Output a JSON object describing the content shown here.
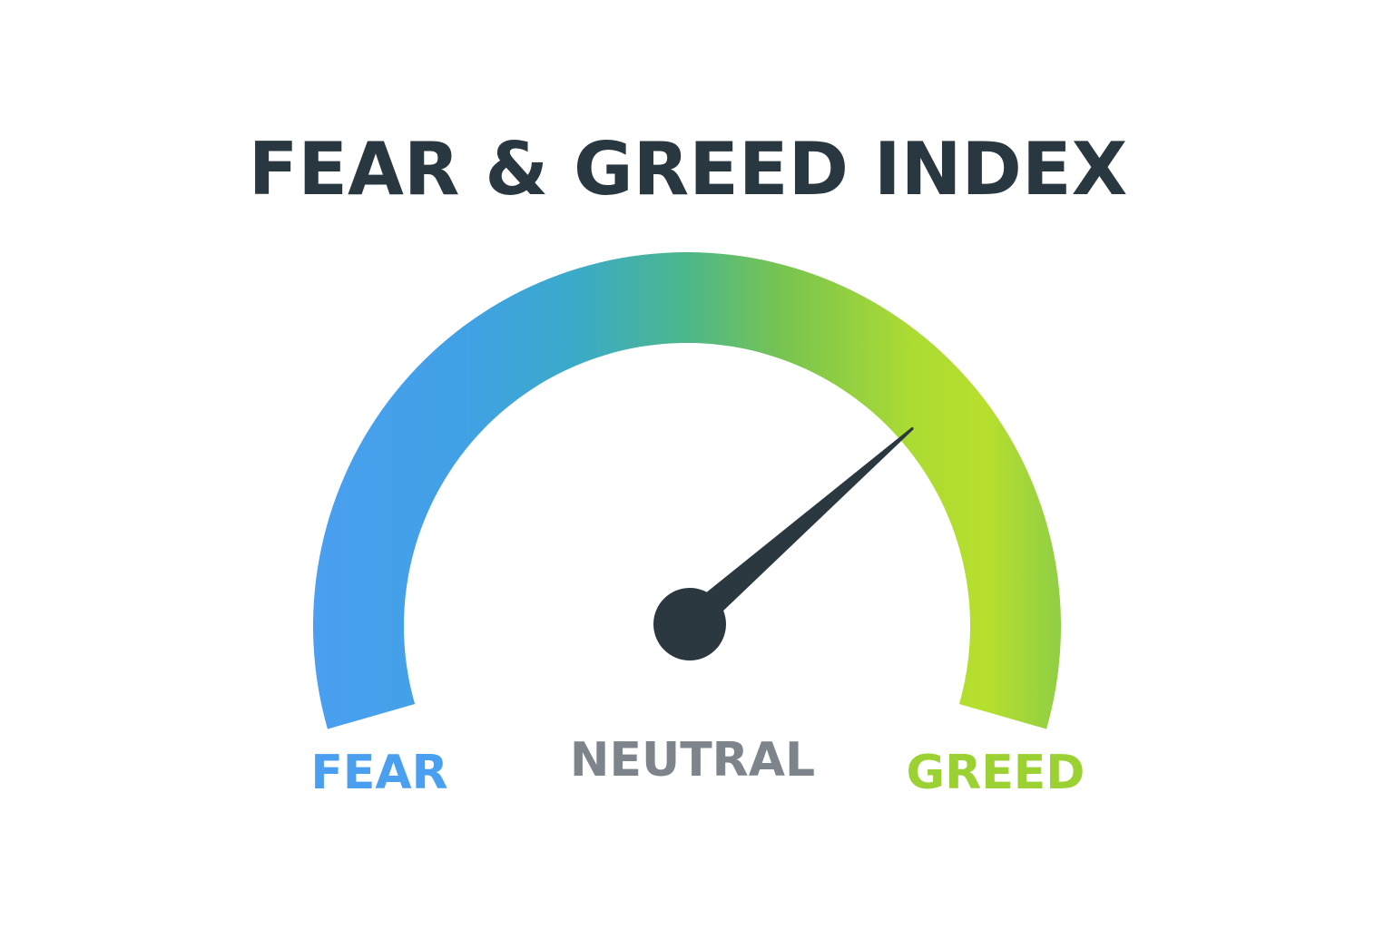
{
  "chart_data": {
    "type": "gauge",
    "title": "FEAR & GREED INDEX",
    "scale_min": 0,
    "scale_max": 100,
    "value": 73,
    "zone_labels": [
      {
        "key": "fear",
        "text": "FEAR",
        "color": "#4a9ff0"
      },
      {
        "key": "neutral",
        "text": "NEUTRAL",
        "color": "#7d848b"
      },
      {
        "key": "greed",
        "text": "GREED",
        "color": "#9bd133"
      }
    ],
    "gradient_colors": [
      "#4a9ff0",
      "#3aa5dc",
      "#4db58c",
      "#76c351",
      "#a9da33",
      "#bde22d",
      "#8ccf45"
    ]
  },
  "colors": {
    "title": "#283740",
    "needle": "#2b3840",
    "background": "#ffffff"
  }
}
